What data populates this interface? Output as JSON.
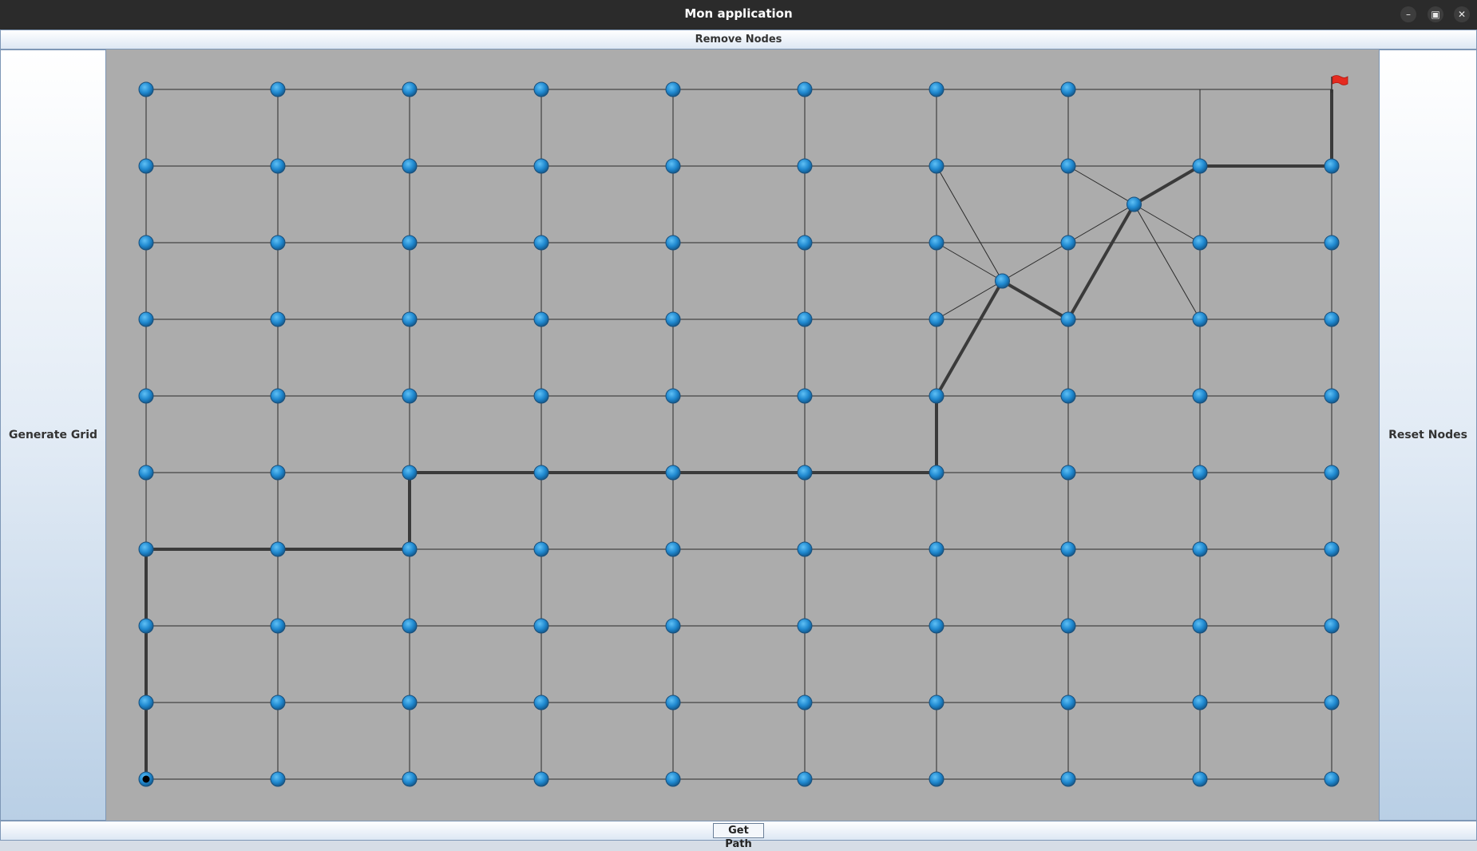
{
  "window": {
    "title": "Mon application",
    "minimize_icon": "minimize-icon",
    "maximize_icon": "restore-icon",
    "close_icon": "close-icon"
  },
  "buttons": {
    "top": "Remove Nodes",
    "left": "Generate Grid",
    "right": "Reset Nodes",
    "bottom": "Get Path"
  },
  "colors": {
    "canvas_bg": "#acacac",
    "node": "#1f88cf",
    "grid_edge": "#2a2a2a",
    "path_edge": "#3a3a3a",
    "flag": "#e52b20"
  },
  "graph": {
    "columns": 10,
    "rows": 10,
    "start_node": [
      0,
      9
    ],
    "goal_node": [
      9,
      0
    ],
    "removed_nodes": [
      [
        8,
        0
      ]
    ],
    "extra_nodes": [
      {
        "id": "A",
        "between": [
          [
            6,
            2
          ],
          [
            7,
            3
          ]
        ]
      },
      {
        "id": "B",
        "between": [
          [
            7,
            1
          ],
          [
            8,
            2
          ]
        ]
      }
    ],
    "extra_edges": [
      [
        "A",
        [
          6,
          1
        ]
      ],
      [
        "A",
        [
          6,
          2
        ]
      ],
      [
        "A",
        [
          6,
          3
        ]
      ],
      [
        "A",
        [
          6,
          4
        ]
      ],
      [
        "A",
        [
          7,
          2
        ]
      ],
      [
        "A",
        [
          7,
          3
        ]
      ],
      [
        "B",
        [
          7,
          1
        ]
      ],
      [
        "B",
        [
          7,
          2
        ]
      ],
      [
        "B",
        [
          7,
          3
        ]
      ],
      [
        "B",
        [
          8,
          1
        ]
      ],
      [
        "B",
        [
          8,
          2
        ]
      ],
      [
        "B",
        [
          8,
          3
        ]
      ]
    ],
    "path": [
      [
        0,
        9
      ],
      [
        0,
        8
      ],
      [
        0,
        7
      ],
      [
        0,
        6
      ],
      [
        1,
        6
      ],
      [
        2,
        6
      ],
      [
        2,
        5
      ],
      [
        3,
        5
      ],
      [
        4,
        5
      ],
      [
        5,
        5
      ],
      [
        6,
        5
      ],
      [
        6,
        4
      ],
      "A",
      [
        7,
        3
      ],
      "B",
      [
        8,
        1
      ],
      [
        9,
        1
      ],
      [
        9,
        0
      ]
    ]
  }
}
